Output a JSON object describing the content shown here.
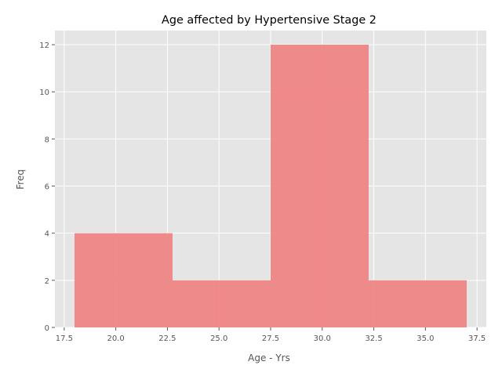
{
  "chart_data": {
    "type": "bar",
    "subtype": "histogram",
    "title": "Age affected by Hypertensive Stage 2",
    "xlabel": "Age - Yrs",
    "ylabel": "Freq",
    "bins": [
      {
        "start": 18.0,
        "end": 22.75,
        "count": 4
      },
      {
        "start": 22.75,
        "end": 27.5,
        "count": 2
      },
      {
        "start": 27.5,
        "end": 32.25,
        "count": 12
      },
      {
        "start": 32.25,
        "end": 37.0,
        "count": 2
      }
    ],
    "xlim": [
      17.05,
      37.95
    ],
    "ylim": [
      0,
      12.6
    ],
    "xticks": [
      17.5,
      20.0,
      22.5,
      25.0,
      27.5,
      30.0,
      32.5,
      35.0,
      37.5
    ],
    "xtick_labels": [
      "17.5",
      "20.0",
      "22.5",
      "25.0",
      "27.5",
      "30.0",
      "32.5",
      "35.0",
      "37.5"
    ],
    "yticks": [
      0,
      2,
      4,
      6,
      8,
      10,
      12
    ],
    "ytick_labels": [
      "0",
      "2",
      "4",
      "6",
      "8",
      "10",
      "12"
    ],
    "grid": true,
    "colors": {
      "bar": "#f08080",
      "plot_background": "#e5e5e5",
      "grid": "#ffffff"
    }
  }
}
